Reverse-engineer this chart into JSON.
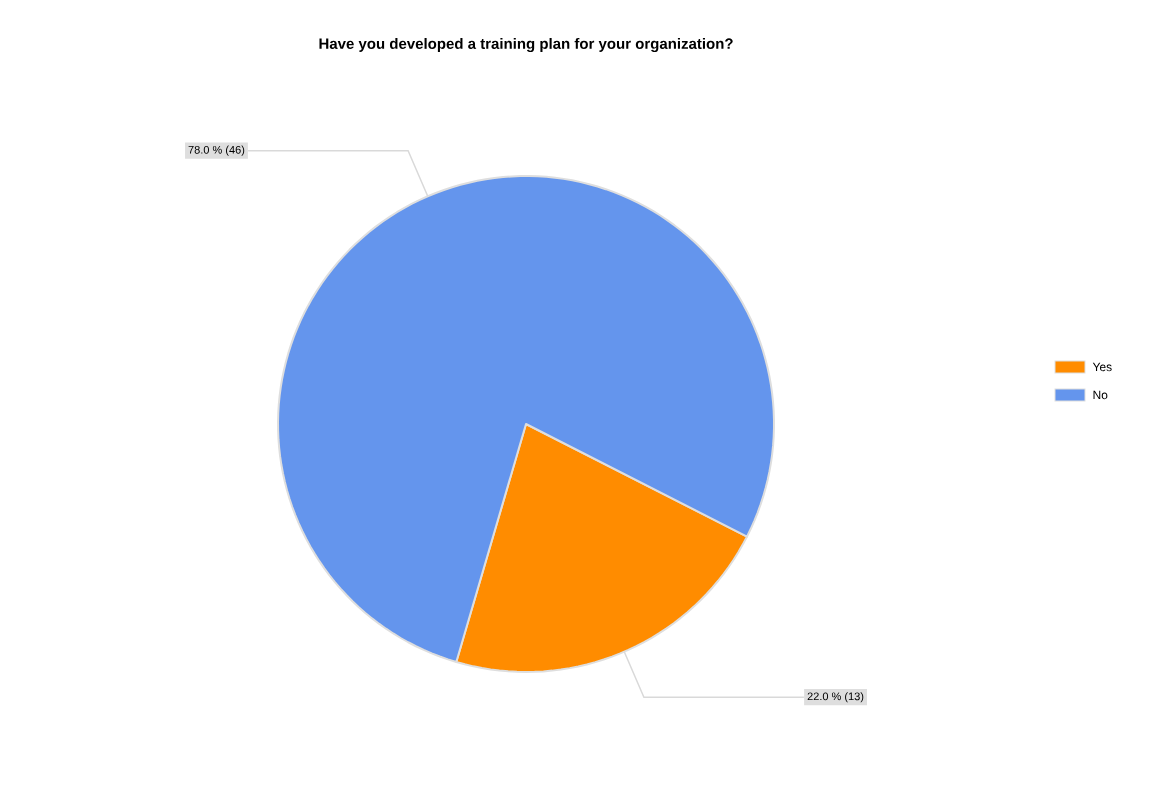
{
  "chart_data": {
    "type": "pie",
    "title": "Have you developed a training plan for your organization?",
    "categories": [
      "Yes",
      "No"
    ],
    "values": [
      13,
      46
    ],
    "colors": [
      "#ff8c00",
      "#6495ed"
    ],
    "value_labels": [
      "22.0 % (13)",
      "78.0 % (46)"
    ],
    "legend": "right"
  }
}
